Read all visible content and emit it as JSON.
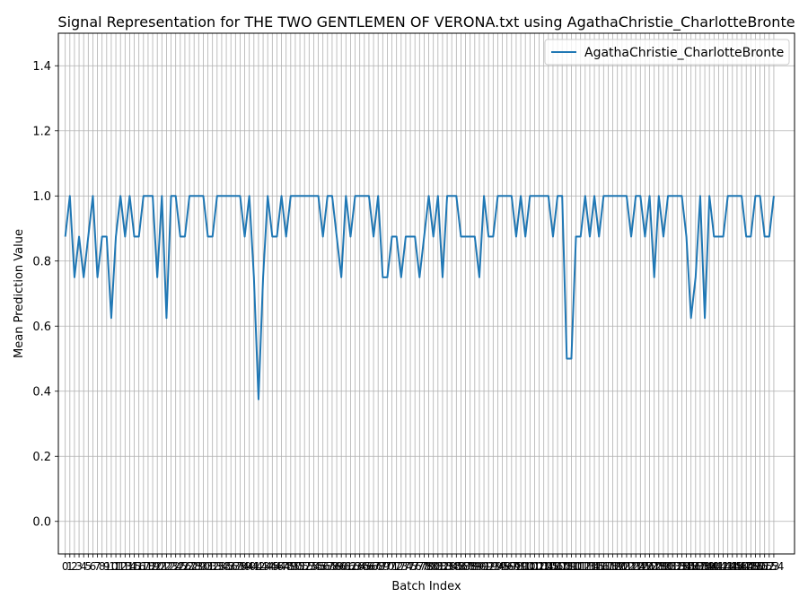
{
  "chart_data": {
    "type": "line",
    "title": "Signal Representation for THE TWO GENTLEMEN OF VERONA.txt using AgathaChristie_CharlotteBronte",
    "xlabel": "Batch Index",
    "ylabel": "Mean Prediction Value",
    "ylim": [
      -0.1,
      1.5
    ],
    "xlim": [
      -1.5,
      158.5
    ],
    "yticks": [
      0.0,
      0.2,
      0.4,
      0.6,
      0.8,
      1.0,
      1.2,
      1.4
    ],
    "ytick_labels": [
      "0.0",
      "0.2",
      "0.4",
      "0.6",
      "0.8",
      "1.0",
      "1.2",
      "1.4"
    ],
    "grid": true,
    "legend_position": "top-right",
    "series": [
      {
        "name": "AgathaChristie_CharlotteBronte",
        "color": "#1f77b4",
        "values": [
          0.875,
          1.0,
          0.75,
          0.875,
          0.75,
          0.875,
          1.0,
          0.75,
          0.875,
          0.875,
          0.625,
          0.875,
          1.0,
          0.875,
          1.0,
          0.875,
          0.875,
          1.0,
          1.0,
          1.0,
          0.75,
          1.0,
          0.625,
          1.0,
          1.0,
          0.875,
          0.875,
          1.0,
          1.0,
          1.0,
          1.0,
          0.875,
          0.875,
          1.0,
          1.0,
          1.0,
          1.0,
          1.0,
          1.0,
          0.875,
          1.0,
          0.75,
          0.375,
          0.75,
          1.0,
          0.875,
          0.875,
          1.0,
          0.875,
          1.0,
          1.0,
          1.0,
          1.0,
          1.0,
          1.0,
          1.0,
          0.875,
          1.0,
          1.0,
          0.875,
          0.75,
          1.0,
          0.875,
          1.0,
          1.0,
          1.0,
          1.0,
          0.875,
          1.0,
          0.75,
          0.75,
          0.875,
          0.875,
          0.75,
          0.875,
          0.875,
          0.875,
          0.75,
          0.875,
          1.0,
          0.875,
          1.0,
          0.75,
          1.0,
          1.0,
          1.0,
          0.875,
          0.875,
          0.875,
          0.875,
          0.75,
          1.0,
          0.875,
          0.875,
          1.0,
          1.0,
          1.0,
          1.0,
          0.875,
          1.0,
          0.875,
          1.0,
          1.0,
          1.0,
          1.0,
          1.0,
          0.875,
          1.0,
          1.0,
          0.5,
          0.5,
          0.875,
          0.875,
          1.0,
          0.875,
          1.0,
          0.875,
          1.0,
          1.0,
          1.0,
          1.0,
          1.0,
          1.0,
          0.875,
          1.0,
          1.0,
          0.875,
          1.0,
          0.75,
          1.0,
          0.875,
          1.0,
          1.0,
          1.0,
          1.0,
          0.875,
          0.625,
          0.75,
          1.0,
          0.625,
          1.0,
          0.875,
          0.875,
          0.875,
          1.0,
          1.0,
          1.0,
          1.0,
          0.875,
          0.875,
          1.0,
          1.0,
          0.875,
          0.875,
          1.0
        ]
      }
    ]
  }
}
